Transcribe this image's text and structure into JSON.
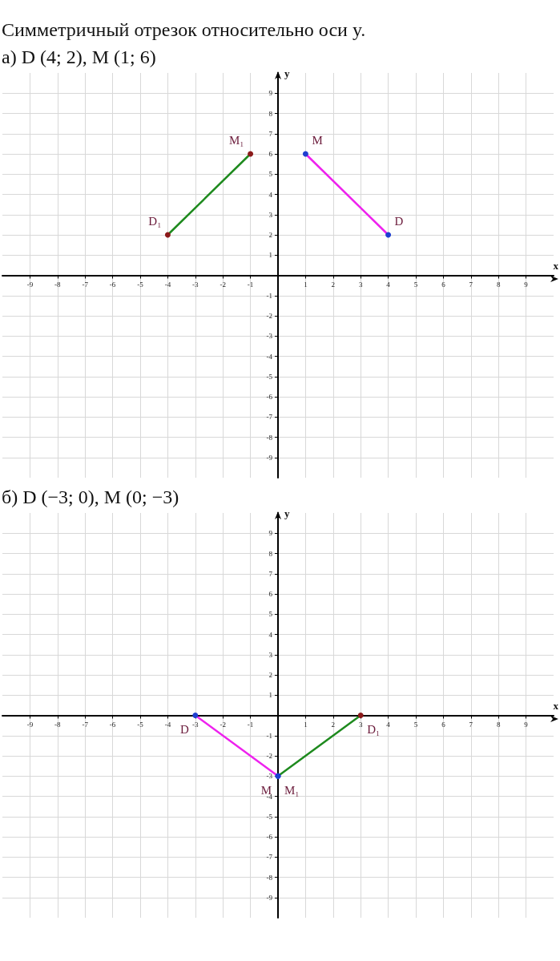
{
  "chart_data": [
    {
      "type": "line",
      "title": "Симметричный отрезок относительно оси y.",
      "subtitle": "а) D (4; 2),        M (1; 6)",
      "xlabel": "x",
      "ylabel": "y",
      "xlim": [
        -10,
        10
      ],
      "ylim": [
        -10,
        10
      ],
      "xticks": [
        -9,
        -8,
        -7,
        -6,
        -5,
        -4,
        -3,
        -2,
        -1,
        {
          "value": 0,
          "label": null
        },
        1,
        2,
        3,
        4,
        5,
        6,
        7,
        8,
        9
      ],
      "yticks": [
        -9,
        -8,
        -7,
        -6,
        -5,
        -4,
        -3,
        -2,
        -1,
        {
          "value": 0,
          "label": null
        },
        1,
        2,
        3,
        4,
        5,
        6,
        7,
        8,
        9
      ],
      "grid": true,
      "marker": "circle",
      "line_style": "solid",
      "series": [
        {
          "color": "#1e8a1e",
          "x": [
            -4,
            -1
          ],
          "values": [
            2,
            6
          ],
          "colors": [
            "#8b1a1a",
            "#8b1a1a"
          ]
        },
        {
          "color": "#ee22ee",
          "x": [
            1,
            4
          ],
          "values": [
            6,
            2
          ],
          "colors": [
            "#1f3fd0",
            "#1f3fd0"
          ]
        }
      ],
      "annotations": [
        {
          "text": "D₁",
          "x": -4,
          "y": 2
        },
        {
          "text": "M₁",
          "x": -1,
          "y": 6
        },
        {
          "text": "M",
          "x": 1,
          "y": 6
        },
        {
          "text": "D",
          "x": 4,
          "y": 2
        }
      ]
    },
    {
      "type": "line",
      "title": "б) D (−3; 0),        M (0; −3)",
      "xlabel": "x",
      "ylabel": "y",
      "xlim": [
        -10,
        10
      ],
      "ylim": [
        -10,
        10
      ],
      "xticks": [
        -9,
        -8,
        -7,
        -6,
        -5,
        -4,
        -3,
        -2,
        -1,
        {
          "value": 0,
          "label": null
        },
        1,
        2,
        3,
        4,
        5,
        6,
        7,
        8,
        9
      ],
      "yticks": [
        -9,
        -8,
        -7,
        -6,
        -5,
        -4,
        -3,
        -2,
        -1,
        {
          "value": 0,
          "label": null
        },
        1,
        2,
        3,
        4,
        5,
        6,
        7,
        8,
        9
      ],
      "grid": true,
      "marker": "circle",
      "line_style": "solid",
      "series": [
        {
          "color": "#ee22ee",
          "x": [
            -3,
            0
          ],
          "values": [
            0,
            -3
          ],
          "colors": [
            "#1f3fd0",
            "#1f3fd0"
          ]
        },
        {
          "color": "#1e8a1e",
          "x": [
            0,
            3
          ],
          "values": [
            -3,
            0
          ],
          "colors": [
            "#1f3fd0",
            "#8b1a1a"
          ]
        }
      ],
      "annotations": [
        {
          "text": "D",
          "x": -3,
          "y": 0
        },
        {
          "text": "M",
          "x": 0,
          "y": -3
        },
        {
          "text": "M₁",
          "x": 0,
          "y": -3
        },
        {
          "text": "D₁",
          "x": 3,
          "y": 0
        }
      ]
    }
  ]
}
